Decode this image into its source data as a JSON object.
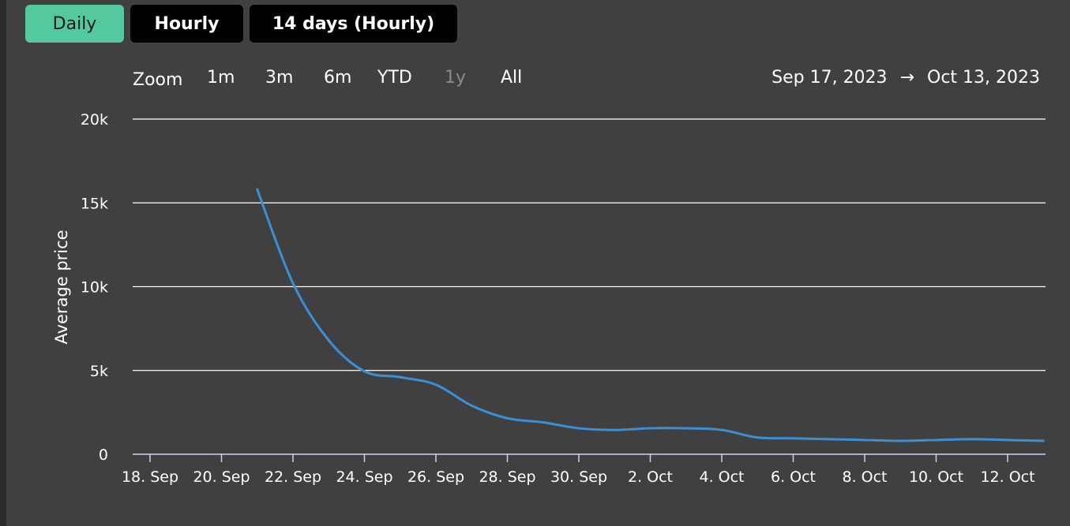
{
  "tabs": [
    {
      "label": "Daily",
      "active": true
    },
    {
      "label": "Hourly",
      "active": false
    },
    {
      "label": "14 days (Hourly)",
      "active": false
    }
  ],
  "zoom": {
    "label": "Zoom",
    "buttons": [
      {
        "label": "1m",
        "enabled": true
      },
      {
        "label": "3m",
        "enabled": true
      },
      {
        "label": "6m",
        "enabled": true
      },
      {
        "label": "YTD",
        "enabled": true
      },
      {
        "label": "1y",
        "enabled": false
      },
      {
        "label": "All",
        "enabled": true
      }
    ]
  },
  "range": {
    "from": "Sep 17, 2023",
    "arrow": "→",
    "to": "Oct 13, 2023"
  },
  "colors": {
    "accent": "#55c99e",
    "line": "#3a8fd6",
    "background": "#404040",
    "grid": "#ffffff"
  },
  "chart_data": {
    "type": "line",
    "ylabel": "Average price",
    "xlabel": "",
    "ylim": [
      0,
      20000
    ],
    "yticks": [
      {
        "value": 0,
        "label": "0"
      },
      {
        "value": 5000,
        "label": "5k"
      },
      {
        "value": 10000,
        "label": "10k"
      },
      {
        "value": 15000,
        "label": "15k"
      },
      {
        "value": 20000,
        "label": "20k"
      }
    ],
    "xlim": [
      "2023-09-17",
      "2023-10-13"
    ],
    "xticks": [
      {
        "date": "2023-09-18",
        "label": "18. Sep"
      },
      {
        "date": "2023-09-20",
        "label": "20. Sep"
      },
      {
        "date": "2023-09-22",
        "label": "22. Sep"
      },
      {
        "date": "2023-09-24",
        "label": "24. Sep"
      },
      {
        "date": "2023-09-26",
        "label": "26. Sep"
      },
      {
        "date": "2023-09-28",
        "label": "28. Sep"
      },
      {
        "date": "2023-09-30",
        "label": "30. Sep"
      },
      {
        "date": "2023-10-02",
        "label": "2. Oct"
      },
      {
        "date": "2023-10-04",
        "label": "4. Oct"
      },
      {
        "date": "2023-10-06",
        "label": "6. Oct"
      },
      {
        "date": "2023-10-08",
        "label": "8. Oct"
      },
      {
        "date": "2023-10-10",
        "label": "10. Oct"
      },
      {
        "date": "2023-10-12",
        "label": "12. Oct"
      }
    ],
    "grid": true,
    "series": [
      {
        "points": [
          {
            "date": "2023-09-21",
            "y": 15800
          },
          {
            "date": "2023-09-22",
            "y": 10200
          },
          {
            "date": "2023-09-23",
            "y": 6800
          },
          {
            "date": "2023-09-24",
            "y": 4950
          },
          {
            "date": "2023-09-25",
            "y": 4600
          },
          {
            "date": "2023-09-26",
            "y": 4150
          },
          {
            "date": "2023-09-27",
            "y": 2900
          },
          {
            "date": "2023-09-28",
            "y": 2150
          },
          {
            "date": "2023-09-29",
            "y": 1900
          },
          {
            "date": "2023-09-30",
            "y": 1550
          },
          {
            "date": "2023-10-01",
            "y": 1450
          },
          {
            "date": "2023-10-02",
            "y": 1550
          },
          {
            "date": "2023-10-03",
            "y": 1550
          },
          {
            "date": "2023-10-04",
            "y": 1450
          },
          {
            "date": "2023-10-05",
            "y": 1000
          },
          {
            "date": "2023-10-06",
            "y": 950
          },
          {
            "date": "2023-10-07",
            "y": 900
          },
          {
            "date": "2023-10-08",
            "y": 850
          },
          {
            "date": "2023-10-09",
            "y": 800
          },
          {
            "date": "2023-10-10",
            "y": 850
          },
          {
            "date": "2023-10-11",
            "y": 900
          },
          {
            "date": "2023-10-12",
            "y": 850
          },
          {
            "date": "2023-10-13",
            "y": 800
          }
        ]
      }
    ]
  }
}
